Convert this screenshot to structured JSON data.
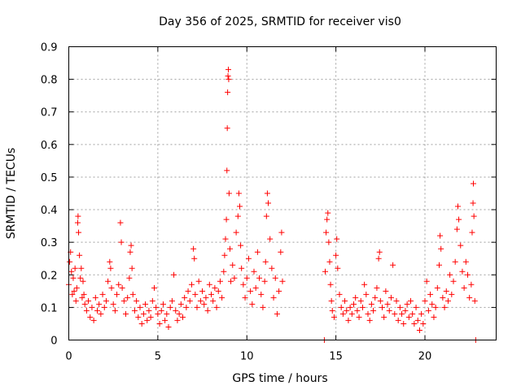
{
  "chart_data": {
    "type": "scatter",
    "title": "Day 356 of 2025, SRMTID for receiver vis0",
    "xlabel": "GPS time / hours",
    "ylabel": "SRMTID / TECUs",
    "xlim": [
      0,
      24
    ],
    "ylim": [
      0,
      0.9
    ],
    "x_ticks": [
      0,
      5,
      10,
      15,
      20
    ],
    "x_tick_labels": [
      "0",
      "5",
      "10",
      "15",
      "20"
    ],
    "y_ticks": [
      0,
      0.1,
      0.2,
      0.3,
      0.4,
      0.5,
      0.6,
      0.7,
      0.8,
      0.9
    ],
    "y_tick_labels": [
      "0",
      "0.1",
      "0.2",
      "0.3",
      "0.4",
      "0.5",
      "0.6",
      "0.7",
      "0.8",
      "0.9"
    ],
    "grid": true,
    "marker": "+",
    "marker_color": "#ff0000",
    "series": [
      {
        "name": "vis0",
        "points": [
          [
            0.0,
            0.17
          ],
          [
            0.05,
            0.24
          ],
          [
            0.1,
            0.27
          ],
          [
            0.15,
            0.21
          ],
          [
            0.2,
            0.14
          ],
          [
            0.25,
            0.19
          ],
          [
            0.3,
            0.15
          ],
          [
            0.35,
            0.22
          ],
          [
            0.4,
            0.12
          ],
          [
            0.45,
            0.16
          ],
          [
            0.5,
            0.36
          ],
          [
            0.52,
            0.38
          ],
          [
            0.55,
            0.33
          ],
          [
            0.6,
            0.26
          ],
          [
            0.65,
            0.19
          ],
          [
            0.7,
            0.22
          ],
          [
            0.75,
            0.13
          ],
          [
            0.8,
            0.18
          ],
          [
            0.85,
            0.14
          ],
          [
            0.9,
            0.11
          ],
          [
            1.0,
            0.09
          ],
          [
            1.1,
            0.12
          ],
          [
            1.2,
            0.07
          ],
          [
            1.3,
            0.1
          ],
          [
            1.4,
            0.06
          ],
          [
            1.5,
            0.13
          ],
          [
            1.6,
            0.09
          ],
          [
            1.7,
            0.11
          ],
          [
            1.8,
            0.08
          ],
          [
            1.9,
            0.14
          ],
          [
            2.0,
            0.1
          ],
          [
            2.1,
            0.12
          ],
          [
            2.2,
            0.18
          ],
          [
            2.3,
            0.24
          ],
          [
            2.35,
            0.22
          ],
          [
            2.4,
            0.16
          ],
          [
            2.5,
            0.11
          ],
          [
            2.6,
            0.09
          ],
          [
            2.7,
            0.14
          ],
          [
            2.8,
            0.17
          ],
          [
            2.9,
            0.36
          ],
          [
            2.95,
            0.3
          ],
          [
            3.0,
            0.16
          ],
          [
            3.1,
            0.12
          ],
          [
            3.2,
            0.08
          ],
          [
            3.3,
            0.13
          ],
          [
            3.4,
            0.19
          ],
          [
            3.45,
            0.27
          ],
          [
            3.5,
            0.29
          ],
          [
            3.55,
            0.22
          ],
          [
            3.6,
            0.14
          ],
          [
            3.7,
            0.09
          ],
          [
            3.8,
            0.12
          ],
          [
            3.9,
            0.07
          ],
          [
            4.0,
            0.1
          ],
          [
            4.1,
            0.05
          ],
          [
            4.2,
            0.08
          ],
          [
            4.3,
            0.11
          ],
          [
            4.4,
            0.06
          ],
          [
            4.5,
            0.09
          ],
          [
            4.6,
            0.07
          ],
          [
            4.7,
            0.12
          ],
          [
            4.8,
            0.16
          ],
          [
            4.9,
            0.1
          ],
          [
            5.0,
            0.08
          ],
          [
            5.1,
            0.05
          ],
          [
            5.2,
            0.09
          ],
          [
            5.3,
            0.11
          ],
          [
            5.4,
            0.06
          ],
          [
            5.5,
            0.08
          ],
          [
            5.6,
            0.04
          ],
          [
            5.7,
            0.1
          ],
          [
            5.8,
            0.12
          ],
          [
            5.9,
            0.2
          ],
          [
            6.0,
            0.09
          ],
          [
            6.1,
            0.06
          ],
          [
            6.2,
            0.08
          ],
          [
            6.3,
            0.11
          ],
          [
            6.4,
            0.07
          ],
          [
            6.5,
            0.13
          ],
          [
            6.6,
            0.1
          ],
          [
            6.7,
            0.15
          ],
          [
            6.8,
            0.12
          ],
          [
            6.9,
            0.17
          ],
          [
            7.0,
            0.28
          ],
          [
            7.05,
            0.25
          ],
          [
            7.1,
            0.14
          ],
          [
            7.2,
            0.1
          ],
          [
            7.3,
            0.18
          ],
          [
            7.4,
            0.12
          ],
          [
            7.5,
            0.15
          ],
          [
            7.6,
            0.11
          ],
          [
            7.7,
            0.13
          ],
          [
            7.8,
            0.09
          ],
          [
            7.9,
            0.17
          ],
          [
            8.0,
            0.14
          ],
          [
            8.1,
            0.12
          ],
          [
            8.2,
            0.16
          ],
          [
            8.3,
            0.1
          ],
          [
            8.4,
            0.15
          ],
          [
            8.5,
            0.18
          ],
          [
            8.6,
            0.13
          ],
          [
            8.7,
            0.21
          ],
          [
            8.75,
            0.26
          ],
          [
            8.8,
            0.31
          ],
          [
            8.85,
            0.37
          ],
          [
            8.88,
            0.52
          ],
          [
            8.9,
            0.65
          ],
          [
            8.92,
            0.76
          ],
          [
            8.94,
            0.81
          ],
          [
            8.96,
            0.83
          ],
          [
            8.98,
            0.8
          ],
          [
            9.0,
            0.45
          ],
          [
            9.05,
            0.28
          ],
          [
            9.1,
            0.18
          ],
          [
            9.2,
            0.23
          ],
          [
            9.3,
            0.19
          ],
          [
            9.4,
            0.33
          ],
          [
            9.5,
            0.38
          ],
          [
            9.55,
            0.45
          ],
          [
            9.6,
            0.41
          ],
          [
            9.65,
            0.29
          ],
          [
            9.7,
            0.22
          ],
          [
            9.8,
            0.17
          ],
          [
            9.9,
            0.13
          ],
          [
            10.0,
            0.19
          ],
          [
            10.1,
            0.25
          ],
          [
            10.2,
            0.15
          ],
          [
            10.3,
            0.11
          ],
          [
            10.4,
            0.21
          ],
          [
            10.5,
            0.16
          ],
          [
            10.6,
            0.27
          ],
          [
            10.7,
            0.19
          ],
          [
            10.8,
            0.14
          ],
          [
            10.9,
            0.1
          ],
          [
            11.0,
            0.18
          ],
          [
            11.05,
            0.24
          ],
          [
            11.1,
            0.38
          ],
          [
            11.15,
            0.45
          ],
          [
            11.2,
            0.42
          ],
          [
            11.3,
            0.31
          ],
          [
            11.4,
            0.22
          ],
          [
            11.5,
            0.13
          ],
          [
            11.6,
            0.19
          ],
          [
            11.7,
            0.08
          ],
          [
            11.8,
            0.15
          ],
          [
            11.9,
            0.27
          ],
          [
            11.95,
            0.33
          ],
          [
            12.0,
            0.18
          ],
          [
            14.35,
            0.0
          ],
          [
            14.4,
            0.21
          ],
          [
            14.45,
            0.33
          ],
          [
            14.5,
            0.37
          ],
          [
            14.55,
            0.39
          ],
          [
            14.6,
            0.3
          ],
          [
            14.65,
            0.24
          ],
          [
            14.7,
            0.17
          ],
          [
            14.75,
            0.12
          ],
          [
            14.8,
            0.09
          ],
          [
            14.9,
            0.07
          ],
          [
            15.0,
            0.26
          ],
          [
            15.05,
            0.31
          ],
          [
            15.1,
            0.22
          ],
          [
            15.2,
            0.14
          ],
          [
            15.3,
            0.1
          ],
          [
            15.4,
            0.08
          ],
          [
            15.5,
            0.12
          ],
          [
            15.6,
            0.09
          ],
          [
            15.7,
            0.06
          ],
          [
            15.8,
            0.1
          ],
          [
            15.9,
            0.08
          ],
          [
            16.0,
            0.11
          ],
          [
            16.1,
            0.13
          ],
          [
            16.2,
            0.09
          ],
          [
            16.3,
            0.07
          ],
          [
            16.4,
            0.12
          ],
          [
            16.5,
            0.1
          ],
          [
            16.6,
            0.17
          ],
          [
            16.7,
            0.14
          ],
          [
            16.8,
            0.08
          ],
          [
            16.9,
            0.06
          ],
          [
            17.0,
            0.11
          ],
          [
            17.1,
            0.09
          ],
          [
            17.2,
            0.13
          ],
          [
            17.3,
            0.16
          ],
          [
            17.4,
            0.25
          ],
          [
            17.45,
            0.27
          ],
          [
            17.5,
            0.12
          ],
          [
            17.6,
            0.1
          ],
          [
            17.7,
            0.07
          ],
          [
            17.8,
            0.15
          ],
          [
            17.9,
            0.11
          ],
          [
            18.0,
            0.09
          ],
          [
            18.1,
            0.13
          ],
          [
            18.2,
            0.23
          ],
          [
            18.3,
            0.08
          ],
          [
            18.4,
            0.12
          ],
          [
            18.5,
            0.06
          ],
          [
            18.6,
            0.1
          ],
          [
            18.7,
            0.08
          ],
          [
            18.8,
            0.05
          ],
          [
            18.9,
            0.09
          ],
          [
            19.0,
            0.11
          ],
          [
            19.1,
            0.07
          ],
          [
            19.2,
            0.12
          ],
          [
            19.3,
            0.08
          ],
          [
            19.4,
            0.05
          ],
          [
            19.5,
            0.1
          ],
          [
            19.6,
            0.06
          ],
          [
            19.7,
            0.03
          ],
          [
            19.8,
            0.08
          ],
          [
            19.9,
            0.05
          ],
          [
            20.0,
            0.12
          ],
          [
            20.1,
            0.18
          ],
          [
            20.2,
            0.09
          ],
          [
            20.3,
            0.14
          ],
          [
            20.4,
            0.11
          ],
          [
            20.5,
            0.07
          ],
          [
            20.6,
            0.1
          ],
          [
            20.7,
            0.16
          ],
          [
            20.8,
            0.23
          ],
          [
            20.85,
            0.32
          ],
          [
            20.9,
            0.28
          ],
          [
            21.0,
            0.13
          ],
          [
            21.1,
            0.1
          ],
          [
            21.2,
            0.15
          ],
          [
            21.3,
            0.12
          ],
          [
            21.4,
            0.2
          ],
          [
            21.5,
            0.14
          ],
          [
            21.6,
            0.18
          ],
          [
            21.7,
            0.24
          ],
          [
            21.8,
            0.34
          ],
          [
            21.85,
            0.41
          ],
          [
            21.9,
            0.37
          ],
          [
            22.0,
            0.29
          ],
          [
            22.1,
            0.21
          ],
          [
            22.2,
            0.16
          ],
          [
            22.3,
            0.24
          ],
          [
            22.4,
            0.2
          ],
          [
            22.5,
            0.13
          ],
          [
            22.6,
            0.17
          ],
          [
            22.65,
            0.33
          ],
          [
            22.7,
            0.42
          ],
          [
            22.72,
            0.48
          ],
          [
            22.75,
            0.38
          ],
          [
            22.8,
            0.12
          ],
          [
            22.85,
            0.0
          ]
        ]
      }
    ]
  }
}
